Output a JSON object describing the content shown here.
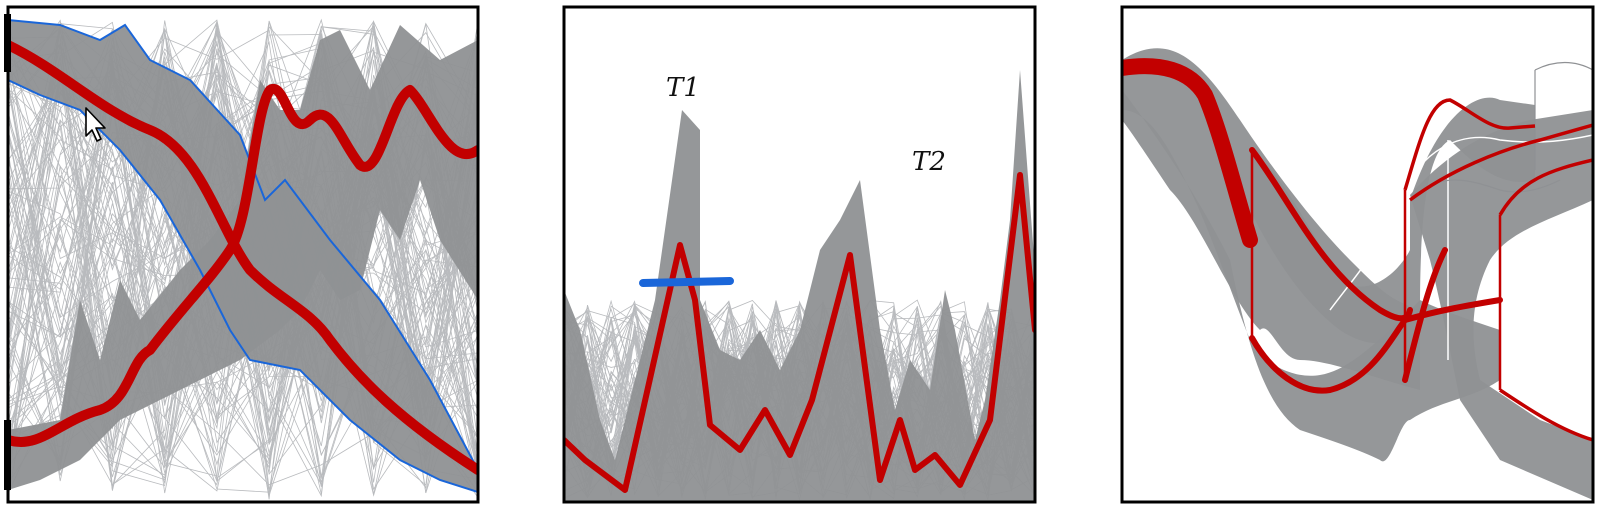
{
  "colors": {
    "band_fill": "#8f9194",
    "thin_line": "#b9bbbe",
    "highlight_red": "#c20000",
    "selection_blue": "#1a66d9",
    "panel_border": "#000000",
    "cursor": "#ffffff"
  },
  "panels": [
    {
      "id": "left",
      "content": [
        "gray-line-bundle",
        "gray-bands",
        "red-centerlines",
        "blue-outlined-band",
        "mouse-cursor",
        "black-axis-bars"
      ]
    },
    {
      "id": "middle",
      "labels": {
        "t1": "T1",
        "t2": "T2"
      },
      "content": [
        "gray-line-bundle",
        "red-line",
        "blue-brush-stroke"
      ]
    },
    {
      "id": "right",
      "content": [
        "gray-bands",
        "red-bundled-lines",
        "thick-red-segment"
      ]
    }
  ],
  "icons": {
    "cursor": "mouse-pointer-icon"
  }
}
